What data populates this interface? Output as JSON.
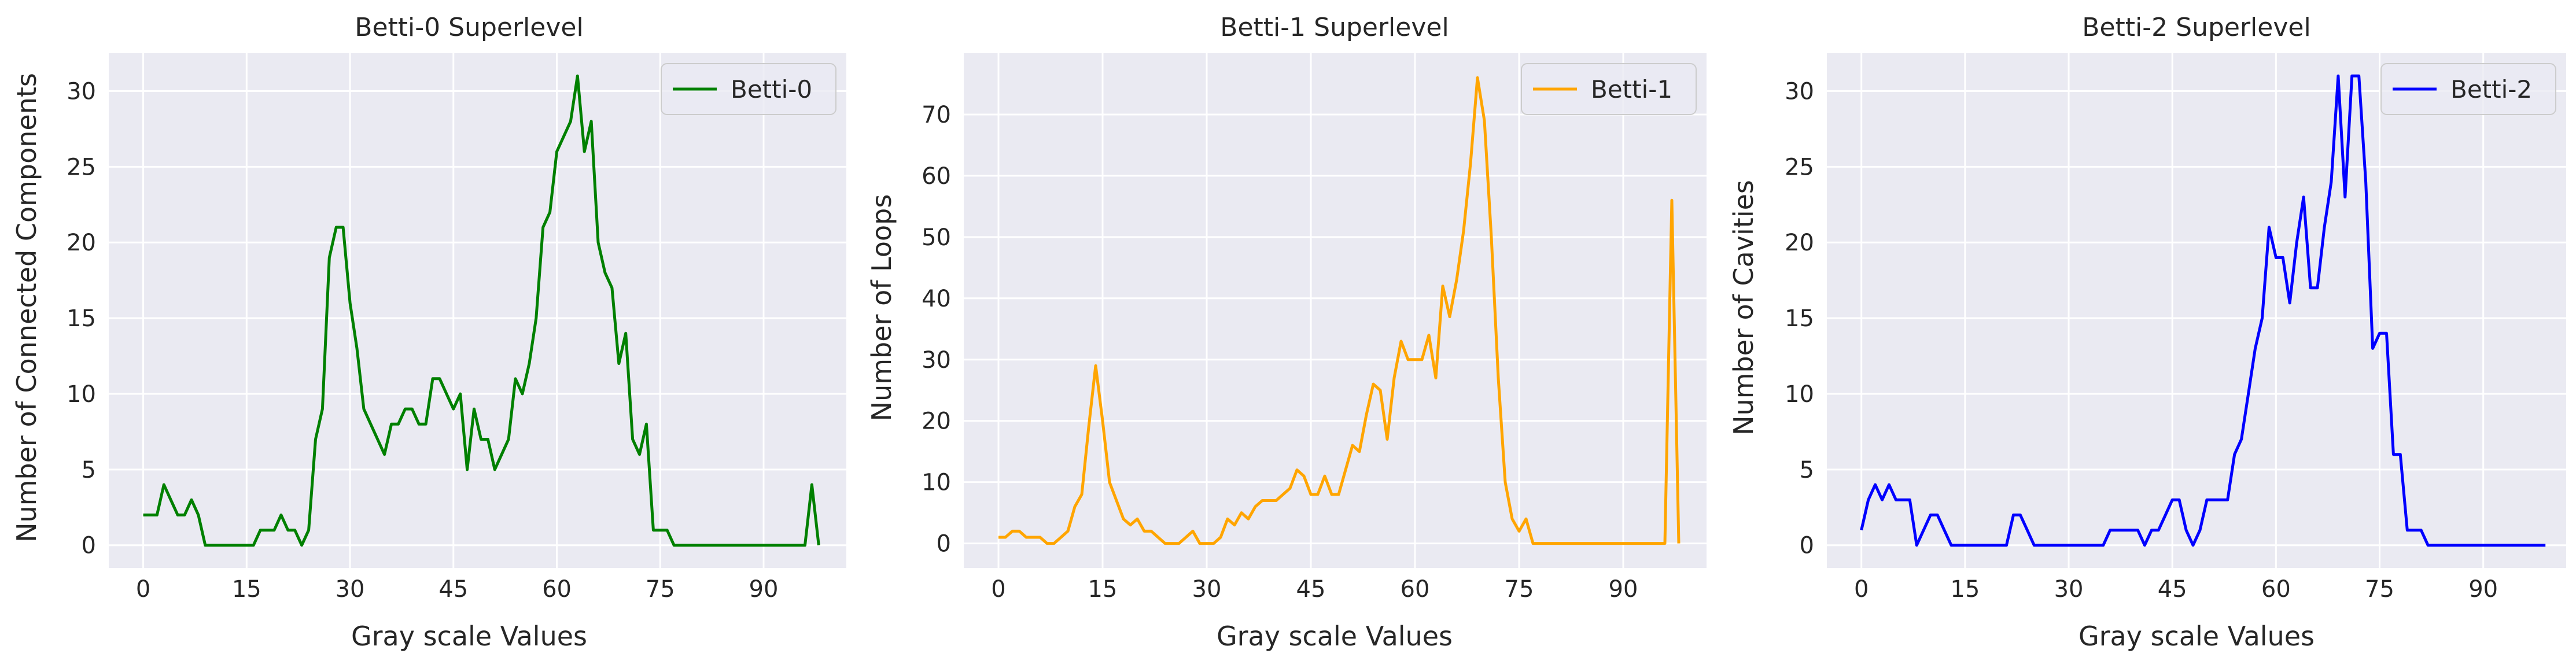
{
  "style": {
    "axes_facecolor": "#eaeaf2",
    "grid_color": "#ffffff",
    "text_color": "#262626"
  },
  "chart_data": [
    {
      "type": "line",
      "title": "Betti-0 Superlevel",
      "xlabel": "Gray scale Values",
      "ylabel": "Number of Connected Components",
      "xlim": [
        -5,
        102
      ],
      "ylim": [
        -1.5,
        32.5
      ],
      "xticks": [
        0,
        15,
        30,
        45,
        60,
        75,
        90
      ],
      "yticks": [
        0,
        5,
        10,
        15,
        20,
        25,
        30
      ],
      "grid": true,
      "legend_position": "top-right",
      "series": [
        {
          "name": "Betti-0",
          "color": "#008000",
          "values": [
            2,
            2,
            2,
            4,
            3,
            2,
            2,
            3,
            2,
            0,
            0,
            0,
            0,
            0,
            0,
            0,
            0,
            1,
            1,
            1,
            2,
            1,
            1,
            0,
            1,
            7,
            9,
            19,
            21,
            21,
            16,
            13,
            9,
            8,
            7,
            6,
            8,
            8,
            9,
            9,
            8,
            8,
            11,
            11,
            10,
            9,
            10,
            5,
            9,
            7,
            7,
            5,
            6,
            7,
            11,
            10,
            12,
            15,
            21,
            22,
            26,
            27,
            28,
            31,
            26,
            28,
            20,
            18,
            17,
            12,
            14,
            7,
            6,
            8,
            1,
            1,
            1,
            0,
            0,
            0,
            0,
            0,
            0,
            0,
            0,
            0,
            0,
            0,
            0,
            0,
            0,
            0,
            0,
            0,
            0,
            0,
            0,
            4,
            0
          ]
        }
      ]
    },
    {
      "type": "line",
      "title": "Betti-1 Superlevel",
      "xlabel": "Gray scale Values",
      "ylabel": "Number of Loops",
      "xlim": [
        -5,
        102
      ],
      "ylim": [
        -4,
        80
      ],
      "xticks": [
        0,
        15,
        30,
        45,
        60,
        75,
        90
      ],
      "yticks": [
        0,
        10,
        20,
        30,
        40,
        50,
        60,
        70
      ],
      "grid": true,
      "legend_position": "top-right",
      "series": [
        {
          "name": "Betti-1",
          "color": "#ffa500",
          "values": [
            1,
            1,
            2,
            2,
            1,
            1,
            1,
            0,
            0,
            1,
            2,
            6,
            8,
            19,
            29,
            20,
            10,
            7,
            4,
            3,
            4,
            2,
            2,
            1,
            0,
            0,
            0,
            1,
            2,
            0,
            0,
            0,
            1,
            4,
            3,
            5,
            4,
            6,
            7,
            7,
            7,
            8,
            9,
            12,
            11,
            8,
            8,
            11,
            8,
            8,
            12,
            16,
            15,
            21,
            26,
            25,
            17,
            27,
            33,
            30,
            30,
            30,
            34,
            27,
            42,
            37,
            43,
            51,
            62,
            76,
            69,
            50,
            27,
            10,
            4,
            2,
            4,
            0,
            0,
            0,
            0,
            0,
            0,
            0,
            0,
            0,
            0,
            0,
            0,
            0,
            0,
            0,
            0,
            0,
            0,
            0,
            0,
            56,
            0
          ]
        }
      ]
    },
    {
      "type": "line",
      "title": "Betti-2 Superlevel",
      "xlabel": "Gray scale Values",
      "ylabel": "Number of Cavities",
      "xlim": [
        -5,
        102
      ],
      "ylim": [
        -1.5,
        32.5
      ],
      "xticks": [
        0,
        15,
        30,
        45,
        60,
        75,
        90
      ],
      "yticks": [
        0,
        5,
        10,
        15,
        20,
        25,
        30
      ],
      "grid": true,
      "legend_position": "top-right",
      "series": [
        {
          "name": "Betti-2",
          "color": "#0000ff",
          "values": [
            1,
            3,
            4,
            3,
            4,
            3,
            3,
            3,
            0,
            1,
            2,
            2,
            1,
            0,
            0,
            0,
            0,
            0,
            0,
            0,
            0,
            0,
            2,
            2,
            1,
            0,
            0,
            0,
            0,
            0,
            0,
            0,
            0,
            0,
            0,
            0,
            1,
            1,
            1,
            1,
            1,
            0,
            1,
            1,
            2,
            3,
            3,
            1,
            0,
            1,
            3,
            3,
            3,
            3,
            6,
            7,
            10,
            13,
            15,
            21,
            19,
            19,
            16,
            20,
            23,
            17,
            17,
            21,
            24,
            31,
            23,
            31,
            31,
            24,
            13,
            14,
            14,
            6,
            6,
            1,
            1,
            1,
            0,
            0,
            0,
            0,
            0,
            0,
            0,
            0,
            0,
            0,
            0,
            0,
            0,
            0,
            0,
            0,
            0,
            0
          ]
        }
      ]
    }
  ]
}
